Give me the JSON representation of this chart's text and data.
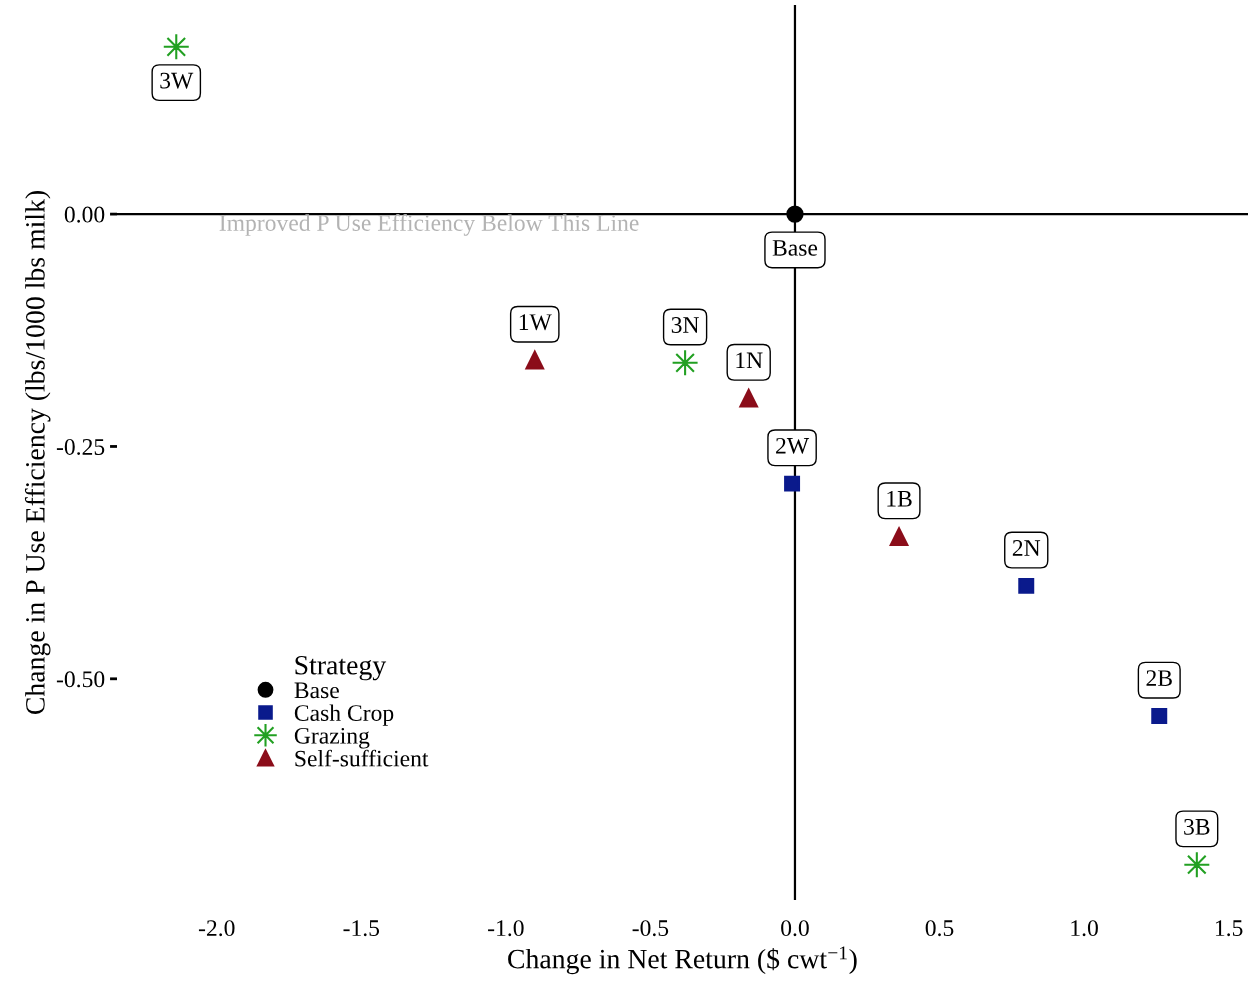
{
  "chart_data": {
    "type": "scatter",
    "xlabel": "Change in Net Return ($ cwt$^{−1}$)",
    "ylabel": "Change in P Use Efficiency (lbs/1000 lbs milk)",
    "legend_title": "Strategy",
    "legend": "bottom left",
    "grid": false,
    "xlim": [
      -2.345,
      1.567
    ],
    "ylim": [
      -0.738,
      0.225
    ],
    "xticks": [
      {
        "value": -2.0,
        "label": "-2.0"
      },
      {
        "value": -1.5,
        "label": "-1.5"
      },
      {
        "value": -1.0,
        "label": "-1.0"
      },
      {
        "value": -0.5,
        "label": "-0.5"
      },
      {
        "value": 0.0,
        "label": "0.0"
      },
      {
        "value": 0.5,
        "label": "0.5"
      },
      {
        "value": 1.0,
        "label": "1.0"
      },
      {
        "value": 1.5,
        "label": "1.5"
      }
    ],
    "yticks": [
      {
        "value": 0.0,
        "label": "0.00"
      },
      {
        "value": -0.25,
        "label": "-0.25"
      },
      {
        "value": -0.5,
        "label": "-0.50"
      }
    ],
    "ref_lines": [
      {
        "axis": "x",
        "value": 0,
        "color": "#000000"
      },
      {
        "axis": "y",
        "value": 0,
        "color": "#000000",
        "label": "Improved P Use Efficiency Below This Line"
      }
    ],
    "series": [
      {
        "name": "Base",
        "color": "#000000",
        "marker": "circle",
        "x": [
          0.0
        ],
        "values": [
          0.0
        ]
      },
      {
        "name": "Cash Crop",
        "color": "#0a1a8c",
        "marker": "square",
        "x": [
          -0.01,
          0.8,
          1.26
        ],
        "values": [
          -0.29,
          -0.4,
          -0.54
        ]
      },
      {
        "name": "Grazing",
        "color": "#22a022",
        "marker": "star",
        "x": [
          -2.14,
          -0.38,
          1.39
        ],
        "values": [
          0.18,
          -0.16,
          -0.7
        ]
      },
      {
        "name": "Self-sufficient",
        "color": "#8b0d1a",
        "marker": "triangle",
        "x": [
          -0.9,
          -0.16,
          0.36
        ],
        "values": [
          -0.157,
          -0.198,
          -0.347
        ]
      }
    ],
    "annotations": [
      {
        "text": "3W",
        "x": -2.14,
        "y": 0.18
      },
      {
        "text": "Base",
        "x": 0.0,
        "y": 0.0
      },
      {
        "text": "1W",
        "x": -0.9,
        "y": -0.157
      },
      {
        "text": "3N",
        "x": -0.38,
        "y": -0.16
      },
      {
        "text": "1N",
        "x": -0.16,
        "y": -0.198
      },
      {
        "text": "2W",
        "x": -0.01,
        "y": -0.29
      },
      {
        "text": "1B",
        "x": 0.36,
        "y": -0.347
      },
      {
        "text": "2N",
        "x": 0.8,
        "y": -0.4
      },
      {
        "text": "2B",
        "x": 1.26,
        "y": -0.54
      },
      {
        "text": "3B",
        "x": 1.39,
        "y": -0.7
      }
    ]
  }
}
